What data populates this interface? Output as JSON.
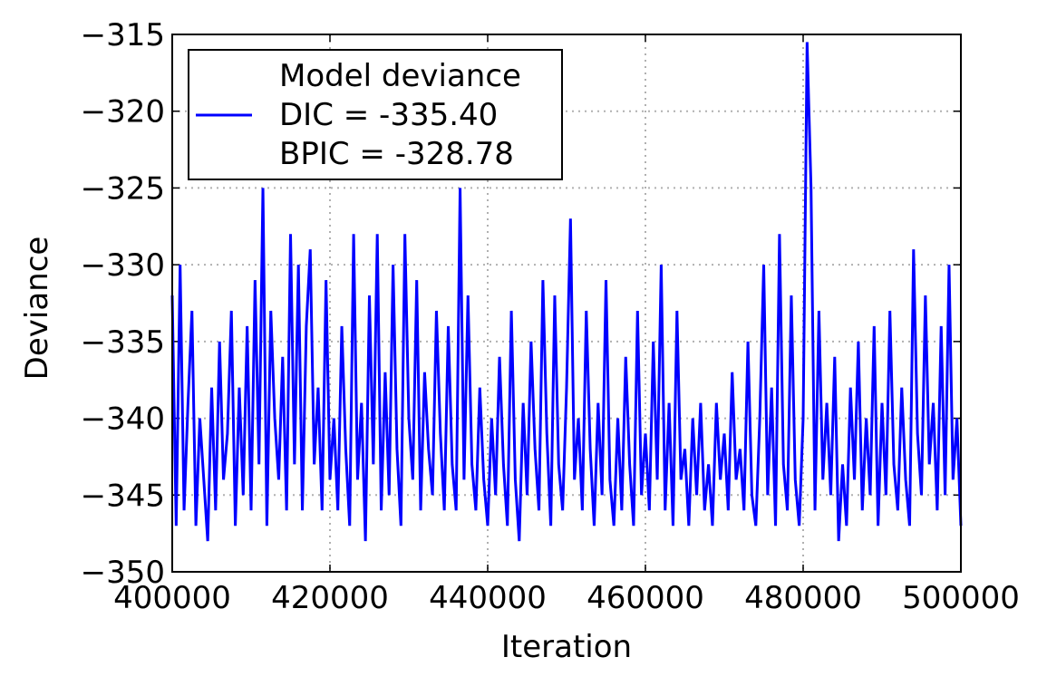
{
  "chart_data": {
    "type": "line",
    "xlabel": "Iteration",
    "ylabel": "Deviance",
    "xlim": [
      400000,
      500000
    ],
    "xticks": [
      400000,
      420000,
      440000,
      460000,
      480000,
      500000
    ],
    "ylim": [
      -350,
      -315
    ],
    "yticks": [
      {
        "value": -350,
        "label": "−350"
      },
      {
        "value": -345,
        "label": "−345"
      },
      {
        "value": -340,
        "label": "−340"
      },
      {
        "value": -335,
        "label": "−335"
      },
      {
        "value": -330,
        "label": "−330"
      },
      {
        "value": -325,
        "label": "−325"
      },
      {
        "value": -320,
        "label": "−320"
      },
      {
        "value": -315,
        "label": "−315"
      }
    ],
    "grid": true,
    "legend_position": "upper left",
    "legend_notes": [
      "DIC = -335.40",
      "BPIC = -328.78"
    ],
    "x": [
      400000,
      400500,
      401000,
      401500,
      402000,
      402500,
      403000,
      403500,
      404000,
      404500,
      405000,
      405500,
      406000,
      406500,
      407000,
      407500,
      408000,
      408500,
      409000,
      409500,
      410000,
      410500,
      411000,
      411500,
      412000,
      412500,
      413000,
      413500,
      414000,
      414500,
      415000,
      415500,
      416000,
      416500,
      417000,
      417500,
      418000,
      418500,
      419000,
      419500,
      420000,
      420500,
      421000,
      421500,
      422000,
      422500,
      423000,
      423500,
      424000,
      424500,
      425000,
      425500,
      426000,
      426500,
      427000,
      427500,
      428000,
      428500,
      429000,
      429500,
      430000,
      430500,
      431000,
      431500,
      432000,
      432500,
      433000,
      433500,
      434000,
      434500,
      435000,
      435500,
      436000,
      436500,
      437000,
      437500,
      438000,
      438500,
      439000,
      439500,
      440000,
      440500,
      441000,
      441500,
      442000,
      442500,
      443000,
      443500,
      444000,
      444500,
      445000,
      445500,
      446000,
      446500,
      447000,
      447500,
      448000,
      448500,
      449000,
      449500,
      450000,
      450500,
      451000,
      451500,
      452000,
      452500,
      453000,
      453500,
      454000,
      454500,
      455000,
      455500,
      456000,
      456500,
      457000,
      457500,
      458000,
      458500,
      459000,
      459500,
      460000,
      460500,
      461000,
      461500,
      462000,
      462500,
      463000,
      463500,
      464000,
      464500,
      465000,
      465500,
      466000,
      466500,
      467000,
      467500,
      468000,
      468500,
      469000,
      469500,
      470000,
      470500,
      471000,
      471500,
      472000,
      472500,
      473000,
      473500,
      474000,
      474500,
      475000,
      475500,
      476000,
      476500,
      477000,
      477500,
      478000,
      478500,
      479000,
      479500,
      480000,
      480500,
      481000,
      481500,
      482000,
      482500,
      483000,
      483500,
      484000,
      484500,
      485000,
      485500,
      486000,
      486500,
      487000,
      487500,
      488000,
      488500,
      489000,
      489500,
      490000,
      490500,
      491000,
      491500,
      492000,
      492500,
      493000,
      493500,
      494000,
      494500,
      495000,
      495500,
      496000,
      496500,
      497000,
      497500,
      498000,
      498500,
      499000,
      499500,
      500000
    ],
    "series": [
      {
        "name": "Model deviance",
        "color": "#0000ff",
        "values": [
          -332,
          -347,
          -330,
          -346,
          -339,
          -333,
          -347,
          -340,
          -344,
          -348,
          -338,
          -346,
          -335,
          -344,
          -341,
          -333,
          -347,
          -338,
          -345,
          -334,
          -346,
          -331,
          -343,
          -325,
          -347,
          -333,
          -340,
          -344,
          -336,
          -346,
          -328,
          -343,
          -330,
          -346,
          -334,
          -329,
          -343,
          -338,
          -346,
          -331,
          -344,
          -340,
          -346,
          -334,
          -342,
          -347,
          -328,
          -344,
          -339,
          -348,
          -332,
          -343,
          -328,
          -346,
          -337,
          -345,
          -330,
          -342,
          -347,
          -328,
          -340,
          -344,
          -331,
          -346,
          -337,
          -342,
          -345,
          -333,
          -341,
          -346,
          -334,
          -343,
          -346,
          -325,
          -344,
          -332,
          -343,
          -346,
          -338,
          -344,
          -347,
          -340,
          -345,
          -336,
          -343,
          -347,
          -333,
          -344,
          -348,
          -339,
          -345,
          -335,
          -342,
          -346,
          -331,
          -341,
          -347,
          -332,
          -343,
          -346,
          -338,
          -327,
          -344,
          -340,
          -346,
          -333,
          -342,
          -347,
          -339,
          -345,
          -331,
          -344,
          -347,
          -340,
          -346,
          -336,
          -343,
          -347,
          -333,
          -345,
          -341,
          -346,
          -335,
          -344,
          -330,
          -346,
          -339,
          -347,
          -333,
          -344,
          -342,
          -347,
          -340,
          -345,
          -339,
          -346,
          -343,
          -347,
          -339,
          -344,
          -341,
          -346,
          -337,
          -344,
          -342,
          -346,
          -335,
          -345,
          -347,
          -340,
          -330,
          -345,
          -338,
          -347,
          -328,
          -343,
          -346,
          -332,
          -344,
          -347,
          -340,
          -315.5,
          -325,
          -346,
          -333,
          -344,
          -339,
          -345,
          -336,
          -348,
          -343,
          -347,
          -338,
          -344,
          -335,
          -346,
          -340,
          -345,
          -334,
          -347,
          -339,
          -345,
          -333,
          -343,
          -346,
          -338,
          -344,
          -347,
          -329,
          -341,
          -345,
          -332,
          -343,
          -339,
          -346,
          -334,
          -345,
          -330,
          -344,
          -340,
          -347
        ]
      }
    ]
  }
}
